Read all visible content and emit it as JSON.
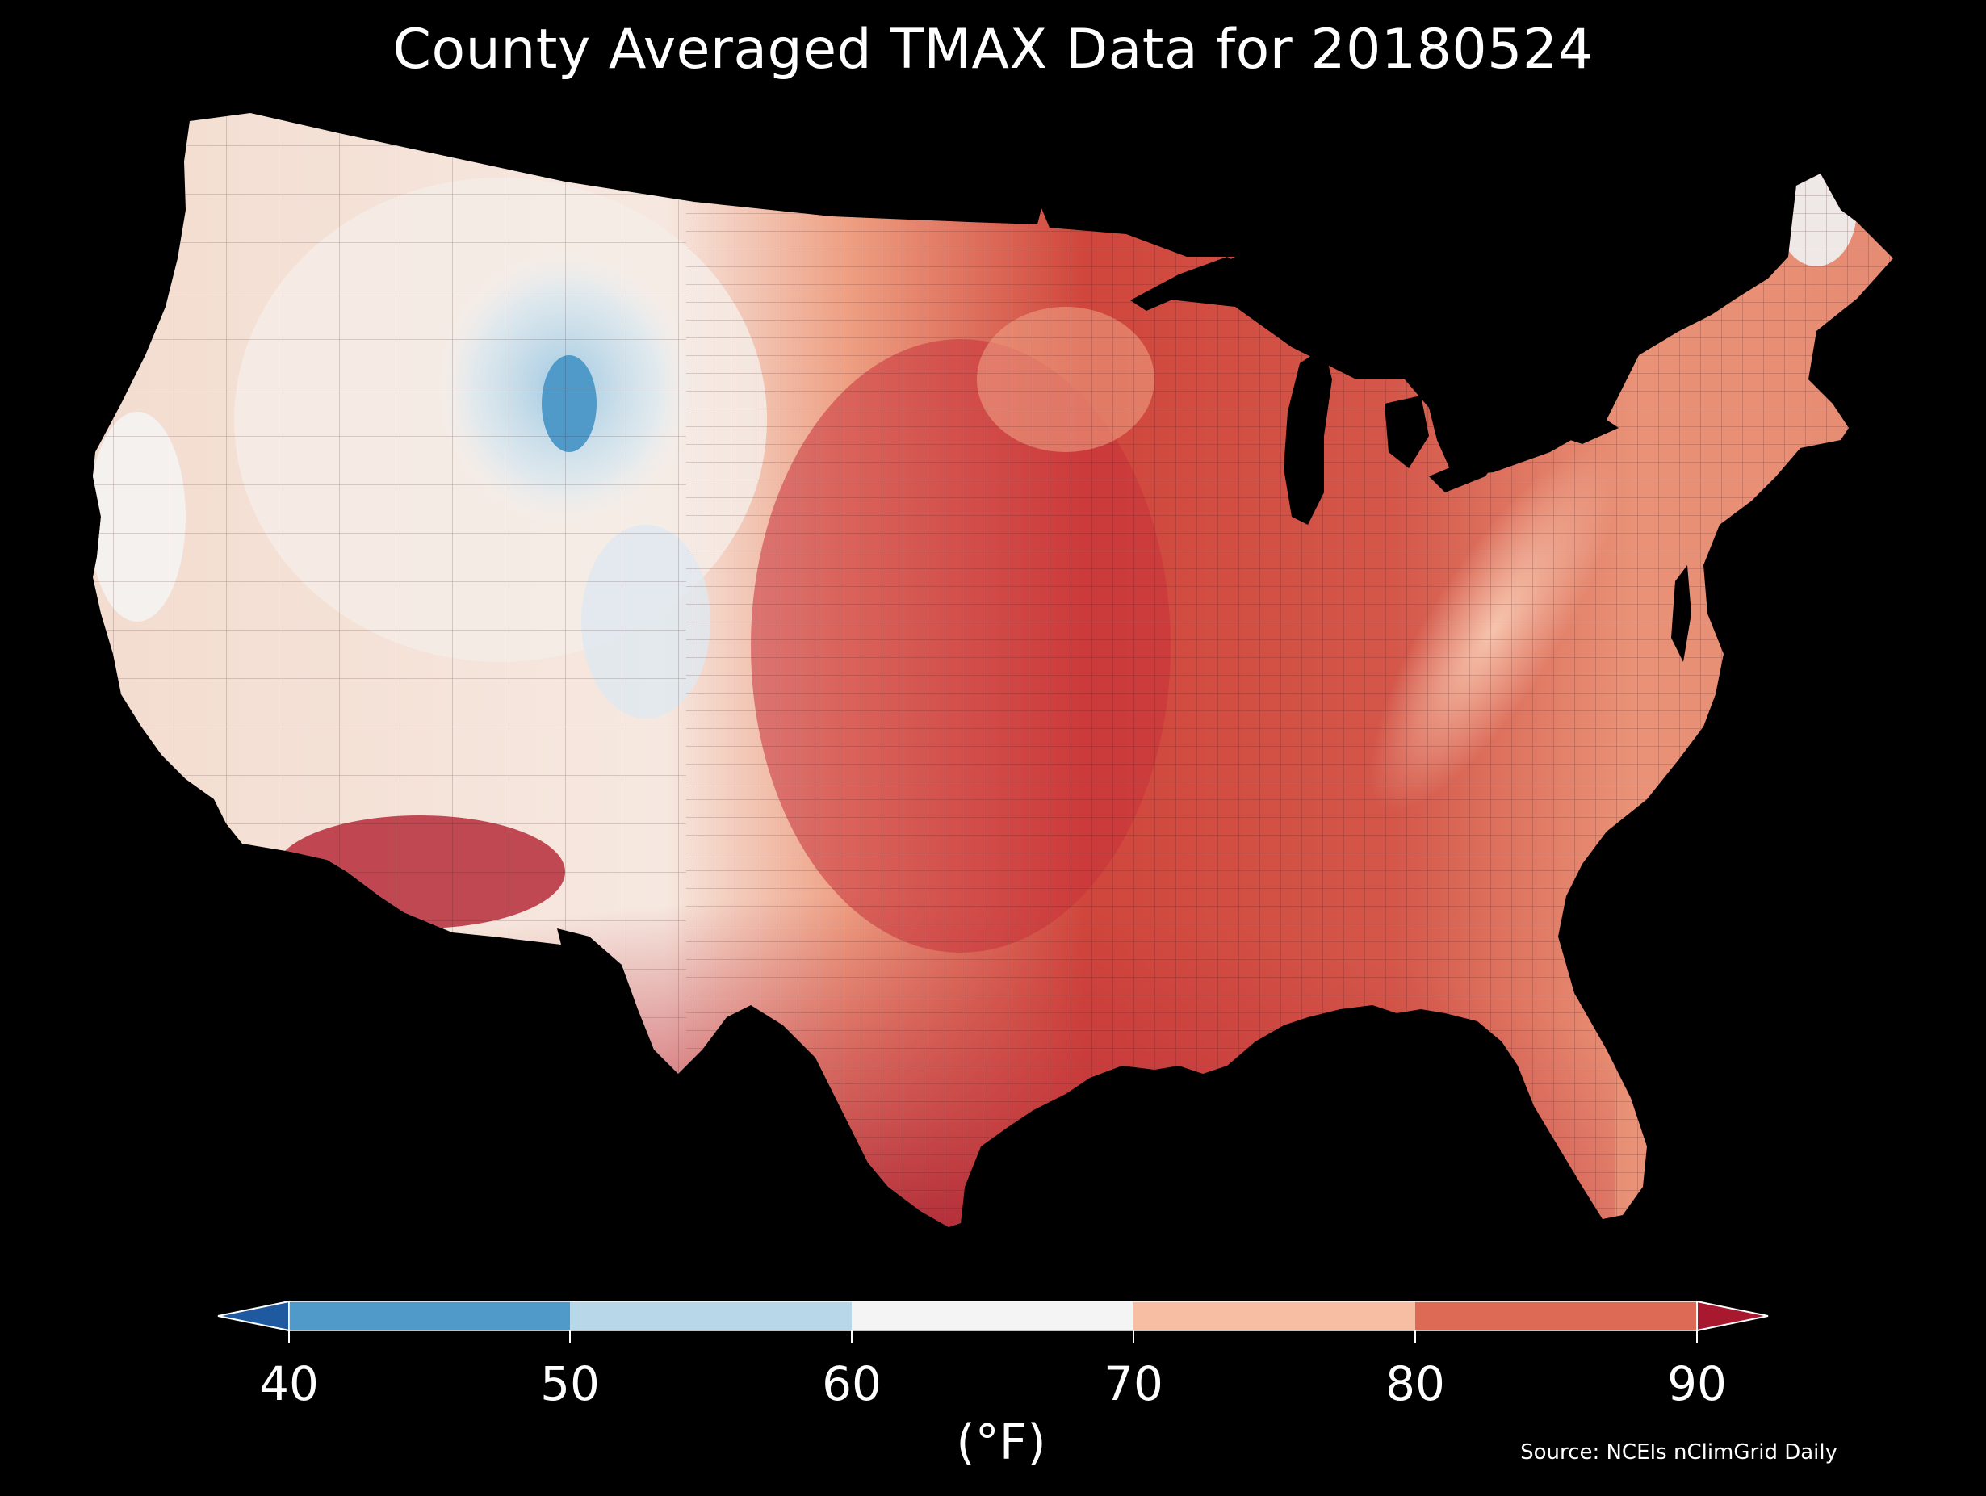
{
  "title": "County Averaged TMAX Data for 20180524",
  "colorbar": {
    "ticks": [
      "40",
      "50",
      "60",
      "70",
      "80",
      "90"
    ],
    "unit_label": "(°F)",
    "extend": "both",
    "bins": [
      {
        "range": [
          null,
          40
        ],
        "color": "#1f5aa0"
      },
      {
        "range": [
          40,
          50
        ],
        "color": "#4f9ac9"
      },
      {
        "range": [
          50,
          60
        ],
        "color": "#b8d8ea"
      },
      {
        "range": [
          60,
          70
        ],
        "color": "#f4f4f4"
      },
      {
        "range": [
          70,
          80
        ],
        "color": "#f7bea4"
      },
      {
        "range": [
          80,
          90
        ],
        "color": "#dc6a55"
      },
      {
        "range": [
          90,
          null
        ],
        "color": "#a8182f"
      }
    ]
  },
  "source": "Source: NCEIs nClimGrid Daily",
  "colors": {
    "background": "#000000",
    "text": "#ffffff",
    "county_border": "#3a1a1a",
    "water": "#000000"
  }
}
